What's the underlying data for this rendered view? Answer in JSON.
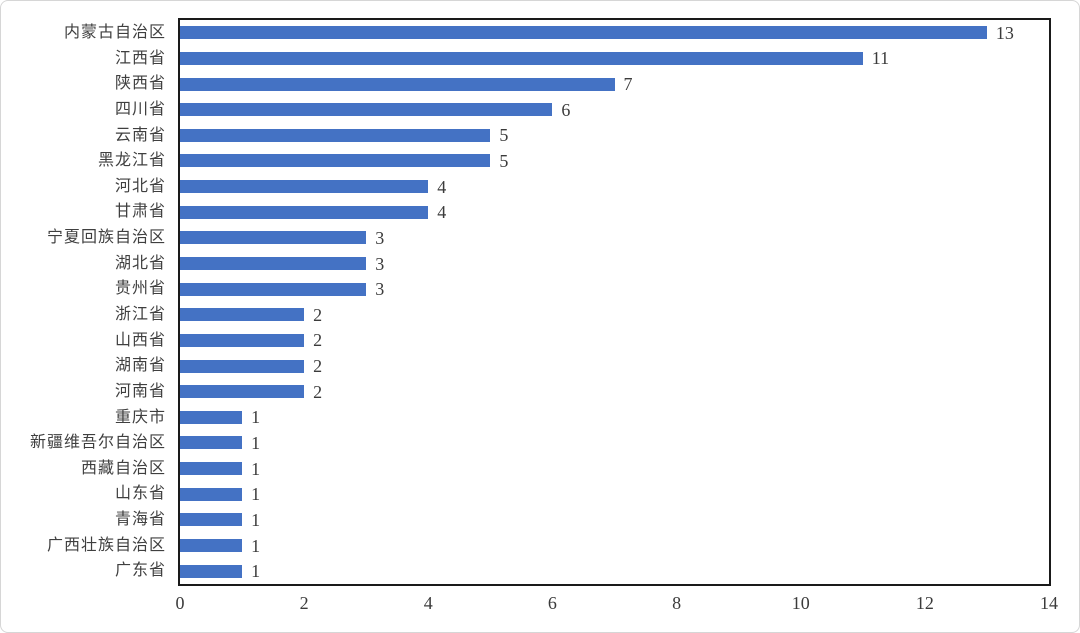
{
  "chart_data": {
    "type": "bar",
    "orientation": "horizontal",
    "title": "",
    "xlabel": "",
    "ylabel": "",
    "categories": [
      "内蒙古自治区",
      "江西省",
      "陕西省",
      "四川省",
      "云南省",
      "黑龙江省",
      "河北省",
      "甘肃省",
      "宁夏回族自治区",
      "湖北省",
      "贵州省",
      "浙江省",
      "山西省",
      "湖南省",
      "河南省",
      "重庆市",
      "新疆维吾尔自治区",
      "西藏自治区",
      "山东省",
      "青海省",
      "广西壮族自治区",
      "广东省"
    ],
    "values": [
      13,
      11,
      7,
      6,
      5,
      5,
      4,
      4,
      3,
      3,
      3,
      2,
      2,
      2,
      2,
      1,
      1,
      1,
      1,
      1,
      1,
      1
    ],
    "xlim": [
      0,
      14
    ],
    "xticks": [
      0,
      2,
      4,
      6,
      8,
      10,
      12,
      14
    ],
    "data_labels_shown": true,
    "grid": false,
    "legend": "none",
    "bar_color": "#4472C4",
    "plot_border_color": "#1a1a1a",
    "text_color": "#3f3f3f"
  }
}
